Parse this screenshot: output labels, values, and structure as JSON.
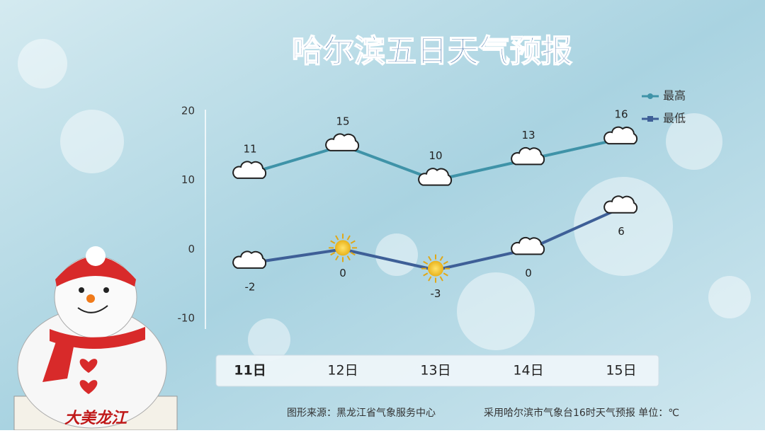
{
  "chart_data": {
    "type": "line",
    "title": "哈尔滨五日天气预报",
    "categories": [
      "11日",
      "12日",
      "13日",
      "14日",
      "15日"
    ],
    "series": [
      {
        "name": "最高",
        "color": "#3f93a8",
        "values": [
          11,
          15,
          10,
          13,
          16
        ]
      },
      {
        "name": "最低",
        "color": "#3e5f97",
        "values": [
          -2,
          0,
          -3,
          0,
          6
        ]
      }
    ],
    "ylim": [
      -10,
      20
    ],
    "yticks": [
      -10,
      0,
      10,
      20
    ],
    "source": "图形来源：黑龙江省气象服务中心",
    "note": "采用哈尔滨市气象台16时天气预报 单位：℃",
    "badge": "大美龙江"
  }
}
